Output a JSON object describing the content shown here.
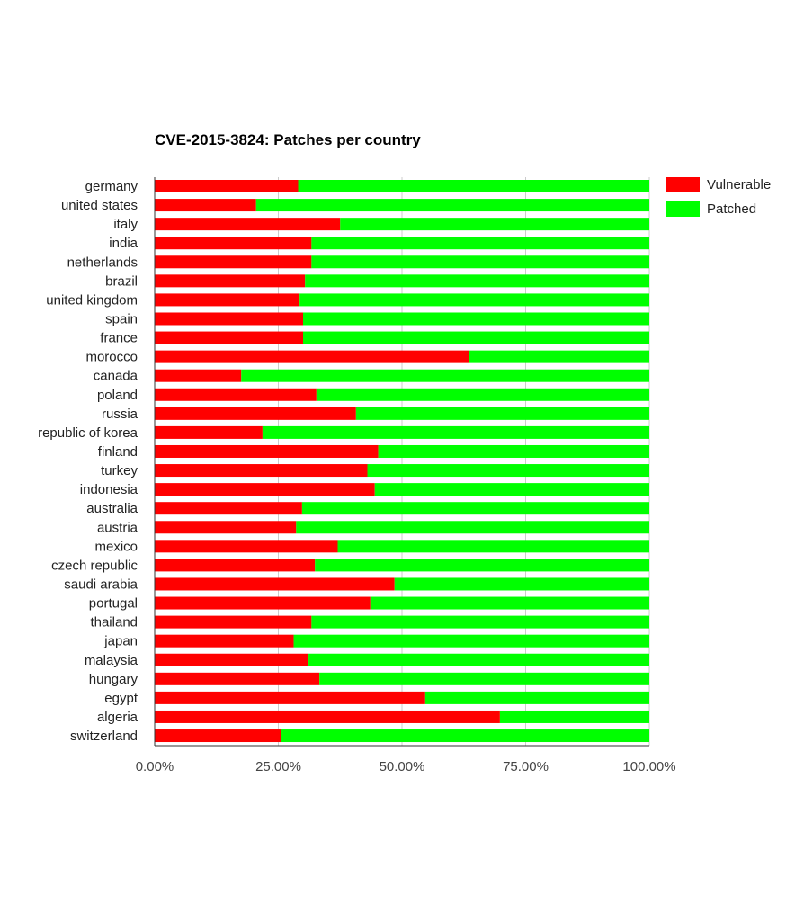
{
  "chart_data": {
    "type": "bar",
    "stacked": true,
    "orientation": "horizontal",
    "percent": true,
    "title": "CVE-2015-3824: Patches per country",
    "xlabel": "",
    "ylabel": "",
    "xlim": [
      0,
      100
    ],
    "x_ticks": [
      "0.00%",
      "25.00%",
      "50.00%",
      "75.00%",
      "100.00%"
    ],
    "grid": true,
    "legend_position": "top-right",
    "categories": [
      "germany",
      "united states",
      "italy",
      "india",
      "netherlands",
      "brazil",
      "united kingdom",
      "spain",
      "france",
      "morocco",
      "canada",
      "poland",
      "russia",
      "republic of korea",
      "finland",
      "turkey",
      "indonesia",
      "australia",
      "austria",
      "mexico",
      "czech republic",
      "saudi arabia",
      "portugal",
      "thailand",
      "japan",
      "malaysia",
      "hungary",
      "egypt",
      "algeria",
      "switzerland"
    ],
    "series": [
      {
        "name": "Vulnerable",
        "color": "#ff0000",
        "values": [
          29,
          20.5,
          37.5,
          31.7,
          31.7,
          30.4,
          29.3,
          30,
          30,
          63.6,
          17.5,
          32.7,
          40.7,
          21.8,
          45.2,
          43,
          44.5,
          29.8,
          28.6,
          37,
          32.4,
          48.5,
          43.6,
          31.7,
          28.1,
          31.1,
          33.3,
          54.7,
          69.8,
          25.6
        ]
      },
      {
        "name": "Patched",
        "color": "#00ff00",
        "values": [
          71,
          79.5,
          62.5,
          68.3,
          68.3,
          69.6,
          70.7,
          70,
          70,
          36.4,
          82.5,
          67.3,
          59.3,
          78.2,
          54.8,
          57,
          55.5,
          70.2,
          71.4,
          63,
          67.6,
          51.5,
          56.4,
          68.3,
          71.9,
          68.9,
          66.7,
          45.3,
          30.2,
          74.4
        ]
      }
    ]
  }
}
